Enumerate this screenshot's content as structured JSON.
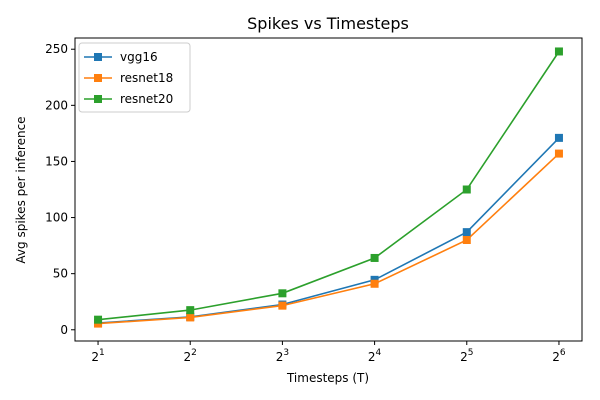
{
  "chart_data": {
    "type": "line",
    "title": "Spikes vs Timesteps",
    "xlabel": "Timesteps (T)",
    "ylabel": "Avg spikes per inference",
    "x_scale": "log2",
    "x": [
      2,
      4,
      8,
      16,
      32,
      64
    ],
    "x_tick_labels": [
      {
        "base": "2",
        "exp": "1"
      },
      {
        "base": "2",
        "exp": "2"
      },
      {
        "base": "2",
        "exp": "3"
      },
      {
        "base": "2",
        "exp": "4"
      },
      {
        "base": "2",
        "exp": "5"
      },
      {
        "base": "2",
        "exp": "6"
      }
    ],
    "y_ticks": [
      0,
      50,
      100,
      150,
      200,
      250
    ],
    "y_tick_labels": [
      "0",
      "50",
      "100",
      "150",
      "200",
      "250"
    ],
    "ylim": [
      -10,
      260
    ],
    "grid": false,
    "legend_position": "top-left",
    "series": [
      {
        "name": "vgg16",
        "color": "#1f77b4",
        "marker": "square",
        "values": [
          6,
          11.5,
          22.5,
          44.5,
          87,
          171
        ]
      },
      {
        "name": "resnet18",
        "color": "#ff7f0e",
        "marker": "square",
        "values": [
          5.5,
          11,
          21.5,
          41,
          80,
          157
        ]
      },
      {
        "name": "resnet20",
        "color": "#2ca02c",
        "marker": "square",
        "values": [
          9,
          17.5,
          32.5,
          64,
          125,
          248
        ]
      }
    ]
  }
}
